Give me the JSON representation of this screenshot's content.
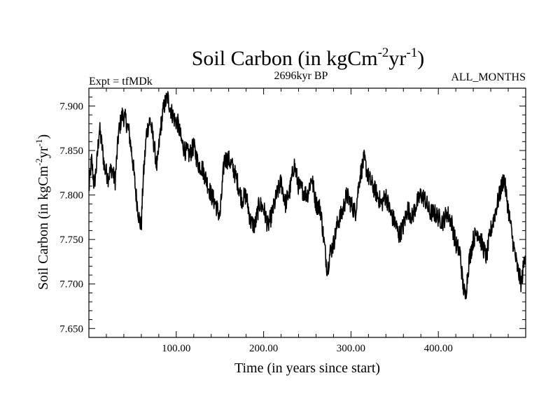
{
  "chart_data": {
    "type": "line",
    "title": "Soil Carbon (in kgCm",
    "title_sup1": "-2",
    "title_mid": "yr",
    "title_sup2": "-1",
    "title_end": ")",
    "subtitle_left": "Expt = tfMDk",
    "subtitle_center": "2696kyr BP",
    "subtitle_right": "ALL_MONTHS",
    "xlabel": "Time (in years since start)",
    "ylabel": "Soil Carbon (in kgCm",
    "ylabel_sup1": "-2",
    "ylabel_mid": "yr",
    "ylabel_sup2": "-1",
    "ylabel_end": ")",
    "xlim": [
      0,
      500
    ],
    "ylim": [
      7.64,
      7.92
    ],
    "x_ticks": [
      100,
      200,
      300,
      400
    ],
    "x_tick_labels": [
      "100.00",
      "200.00",
      "300.00",
      "400.00"
    ],
    "y_ticks": [
      7.65,
      7.7,
      7.75,
      7.8,
      7.85,
      7.9
    ],
    "y_tick_labels": [
      "7.650",
      "7.700",
      "7.750",
      "7.800",
      "7.850",
      "7.900"
    ],
    "series": [
      {
        "name": "Soil Carbon",
        "color": "#000000",
        "x": [
          0,
          3,
          6,
          9,
          12,
          15,
          18,
          22,
          26,
          30,
          34,
          38,
          42,
          46,
          50,
          54,
          58,
          60,
          62,
          66,
          70,
          74,
          78,
          82,
          86,
          90,
          94,
          98,
          102,
          106,
          110,
          115,
          120,
          125,
          130,
          135,
          140,
          145,
          150,
          155,
          160,
          165,
          170,
          175,
          180,
          185,
          190,
          195,
          200,
          205,
          210,
          215,
          220,
          225,
          230,
          235,
          240,
          245,
          250,
          255,
          260,
          265,
          270,
          273,
          276,
          280,
          285,
          290,
          295,
          300,
          305,
          310,
          315,
          320,
          325,
          330,
          335,
          340,
          345,
          350,
          355,
          360,
          365,
          370,
          375,
          380,
          385,
          390,
          395,
          400,
          405,
          410,
          415,
          420,
          425,
          428,
          431,
          435,
          440,
          445,
          450,
          455,
          460,
          465,
          470,
          475,
          480,
          485,
          490,
          495,
          500
        ],
        "values": [
          7.805,
          7.84,
          7.81,
          7.835,
          7.875,
          7.855,
          7.83,
          7.82,
          7.83,
          7.815,
          7.87,
          7.89,
          7.885,
          7.87,
          7.84,
          7.8,
          7.77,
          7.765,
          7.815,
          7.87,
          7.885,
          7.86,
          7.83,
          7.875,
          7.9,
          7.91,
          7.895,
          7.885,
          7.88,
          7.86,
          7.85,
          7.845,
          7.855,
          7.835,
          7.83,
          7.815,
          7.8,
          7.79,
          7.775,
          7.84,
          7.84,
          7.83,
          7.815,
          7.795,
          7.8,
          7.77,
          7.765,
          7.79,
          7.785,
          7.765,
          7.78,
          7.8,
          7.815,
          7.79,
          7.805,
          7.835,
          7.81,
          7.805,
          7.8,
          7.82,
          7.79,
          7.785,
          7.74,
          7.715,
          7.735,
          7.745,
          7.77,
          7.78,
          7.8,
          7.79,
          7.78,
          7.82,
          7.84,
          7.82,
          7.81,
          7.8,
          7.79,
          7.8,
          7.78,
          7.77,
          7.755,
          7.765,
          7.785,
          7.775,
          7.79,
          7.8,
          7.795,
          7.78,
          7.78,
          7.775,
          7.77,
          7.78,
          7.77,
          7.745,
          7.735,
          7.7,
          7.685,
          7.725,
          7.75,
          7.76,
          7.745,
          7.73,
          7.76,
          7.78,
          7.8,
          7.82,
          7.785,
          7.75,
          7.72,
          7.7,
          7.74
        ]
      }
    ]
  }
}
